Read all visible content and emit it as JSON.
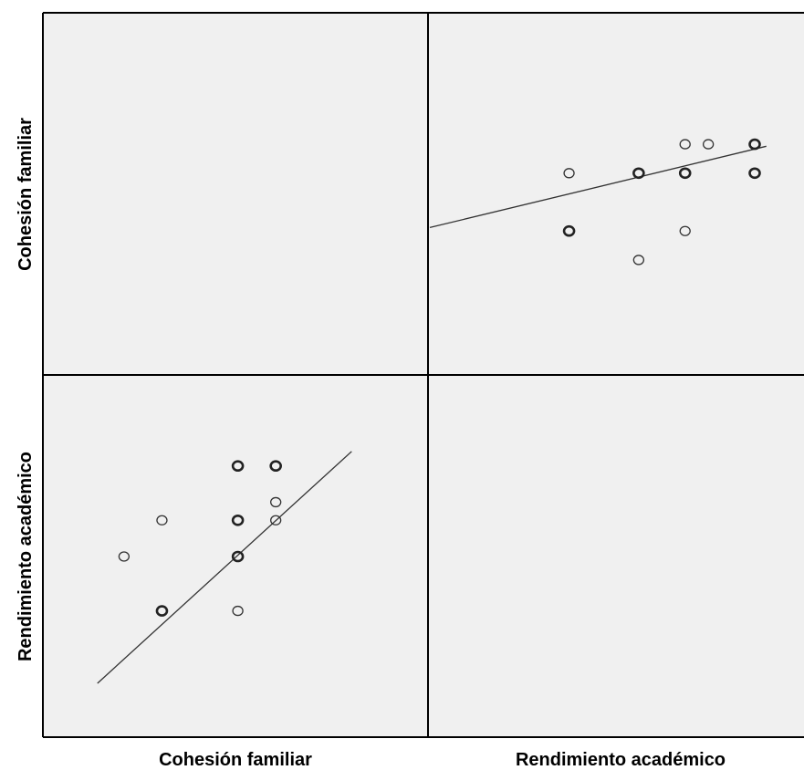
{
  "chart_data": {
    "type": "scatter",
    "variables": [
      "Cohesión familiar",
      "Rendimiento académico"
    ],
    "row_labels": [
      "Cohesión familiar",
      "Rendimiento académico"
    ],
    "column_labels": [
      "Cohesión familiar",
      "Rendimiento académico"
    ],
    "grid": false,
    "fit_line": true,
    "point_color": "#333333",
    "background_color": "#f0f0f0",
    "panels": [
      {
        "row": 0,
        "col": 1,
        "x_var": "Rendimiento académico",
        "y_var": "Cohesión familiar",
        "xlim": [
          2,
          16
        ],
        "ylim": [
          2,
          9
        ],
        "points": [
          {
            "x": 13,
            "y": 7.2,
            "n": 1
          },
          {
            "x": 14,
            "y": 7.2,
            "n": 1
          },
          {
            "x": 16,
            "y": 7.2,
            "n": 2
          },
          {
            "x": 8,
            "y": 6.2,
            "n": 1
          },
          {
            "x": 11,
            "y": 6.2,
            "n": 2
          },
          {
            "x": 13,
            "y": 6.2,
            "n": 2
          },
          {
            "x": 16,
            "y": 6.2,
            "n": 2
          },
          {
            "x": 8,
            "y": 4.2,
            "n": 2
          },
          {
            "x": 13,
            "y": 4.2,
            "n": 1
          },
          {
            "x": 11,
            "y": 3.2,
            "n": 1
          }
        ],
        "fit": {
          "x": [
            2,
            16.5
          ],
          "y": [
            4.32,
            7.13
          ]
        }
      },
      {
        "row": 1,
        "col": 0,
        "x_var": "Cohesión familiar",
        "y_var": "Rendimiento académico",
        "xlim": [
          2,
          9
        ],
        "ylim": [
          2,
          16
        ],
        "points": [
          {
            "x": 6.2,
            "y": 14,
            "n": 2
          },
          {
            "x": 7.2,
            "y": 14,
            "n": 2
          },
          {
            "x": 7.2,
            "y": 12,
            "n": 1
          },
          {
            "x": 4.2,
            "y": 11,
            "n": 1
          },
          {
            "x": 6.2,
            "y": 11,
            "n": 2
          },
          {
            "x": 7.2,
            "y": 11,
            "n": 1
          },
          {
            "x": 3.2,
            "y": 9,
            "n": 1
          },
          {
            "x": 6.2,
            "y": 9,
            "n": 2
          },
          {
            "x": 4.2,
            "y": 6,
            "n": 2
          },
          {
            "x": 6.2,
            "y": 6,
            "n": 1
          }
        ],
        "fit": {
          "x": [
            2.5,
            9.2
          ],
          "y": [
            2.0,
            14.8
          ]
        }
      }
    ]
  }
}
